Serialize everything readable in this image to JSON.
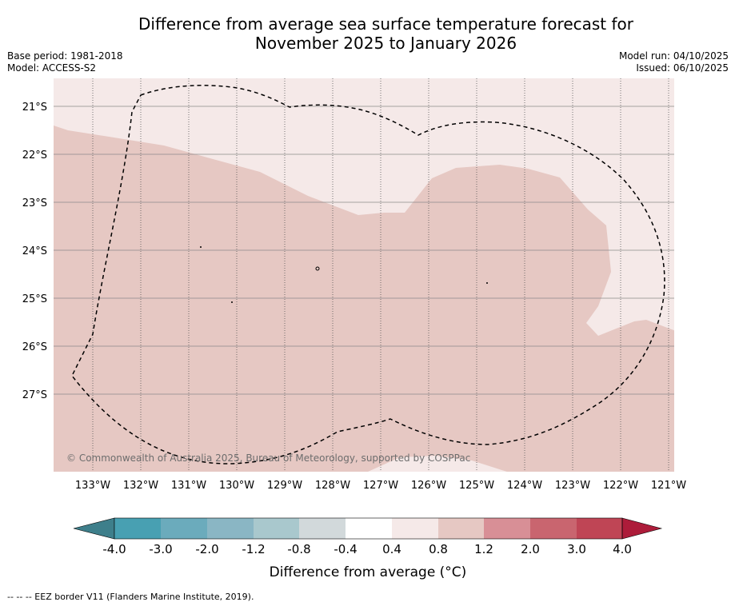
{
  "title_line1": "Difference from average sea surface temperature forecast for",
  "title_line2": "November 2025 to January 2026",
  "base_period": "Base period: 1981-2018",
  "model": "Model: ACCESS-S2",
  "model_run": "Model run: 04/10/2025",
  "issued": "Issued: 06/10/2025",
  "map": {
    "latitudes": [
      "21°S",
      "22°S",
      "23°S",
      "24°S",
      "25°S",
      "26°S",
      "27°S"
    ],
    "longitudes": [
      "133°W",
      "132°W",
      "131°W",
      "130°W",
      "129°W",
      "128°W",
      "127°W",
      "126°W",
      "125°W",
      "124°W",
      "123°W",
      "122°W",
      "121°W"
    ],
    "background_color": "#f5e9e8",
    "anomaly_color": "#e6c8c3",
    "copyright": "© Commonwealth of Australia 2025, Bureau of Meteorology, supported by COSPPac"
  },
  "colorbar": {
    "ticks": [
      "-4.0",
      "-3.0",
      "-2.0",
      "-1.2",
      "-0.8",
      "-0.4",
      "0.4",
      "0.8",
      "1.2",
      "2.0",
      "3.0",
      "4.0"
    ],
    "colors": [
      "#3e7f8b",
      "#48a0b2",
      "#6babbc",
      "#8ab6c4",
      "#a9c8cd",
      "#d2d9db",
      "#ffffff",
      "#f5e9e8",
      "#e6c8c3",
      "#d88f96",
      "#c9656f",
      "#bf4555",
      "#ad1c3a"
    ],
    "label": "Difference from average (°C)"
  },
  "footnote": "--  --  -- EEZ border V11 (Flanders Marine Institute, 2019)."
}
